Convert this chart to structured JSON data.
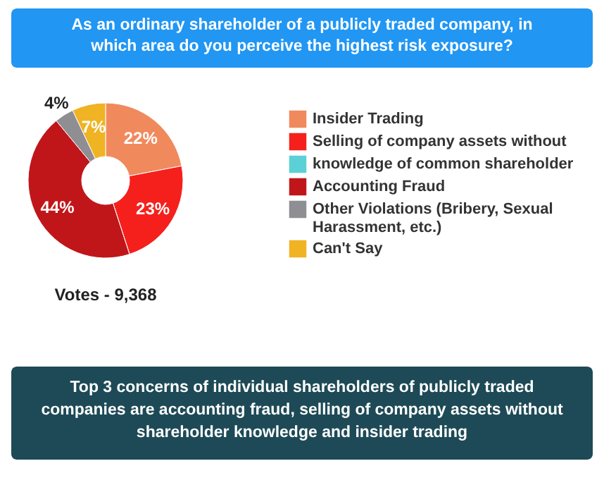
{
  "chart_data": {
    "type": "donut",
    "title": "As an ordinary shareholder of a publicly traded company, in which area do you perceive the highest risk exposure?",
    "categories": [
      "Insider Trading",
      "Selling of company assets without",
      "knowledge of common shareholder",
      "Accounting Fraud",
      "Other Violations (Bribery, Sexual Harassment, etc.)",
      "Can't Say"
    ],
    "values": [
      22,
      23,
      0,
      44,
      4,
      7
    ],
    "colors": [
      "#f08a5d",
      "#f5201c",
      "#5bd0d6",
      "#c0161a",
      "#8e8e93",
      "#f0b323"
    ],
    "value_labels": [
      "22%",
      "23%",
      null,
      "44%",
      "4%",
      "7%"
    ],
    "legend": "right",
    "annotations": [
      "Votes - 9,368",
      "Top 3 concerns of individual shareholders of publicly traded companies are accounting fraud, selling of company assets without shareholder knowledge and insider trading"
    ]
  }
}
